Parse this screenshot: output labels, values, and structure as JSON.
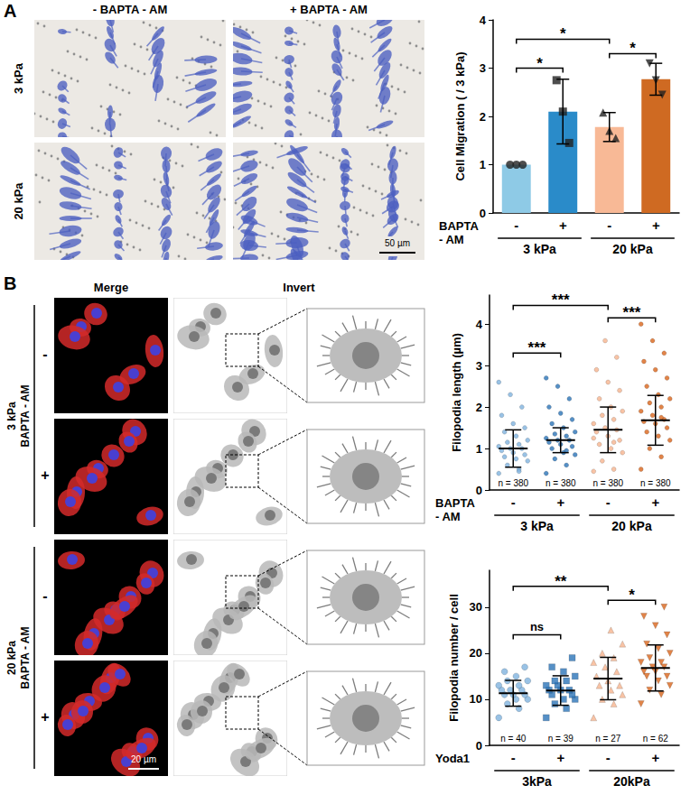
{
  "images": {
    "A": {
      "letter": "A",
      "columns": [
        "- BAPTA - AM",
        "+ BAPTA - AM"
      ],
      "rows": [
        "3 kPa",
        "20 kPa"
      ],
      "scale_bar": "50 µm"
    },
    "B": {
      "letter": "B",
      "columns": [
        "Merge",
        "Invert"
      ],
      "groups": [
        {
          "label": [
            "3 kPa",
            "BAPTA - AM"
          ],
          "rows": [
            "-",
            "+"
          ]
        },
        {
          "label": [
            "20 kPa",
            "BAPTA - AM"
          ],
          "rows": [
            "-",
            "+"
          ]
        }
      ],
      "scale_bar": "20 µm"
    }
  },
  "chart_data": [
    {
      "type": "bar",
      "y_label": "Cell Migration ( / 3 kPa)",
      "categories": [
        "-",
        "+",
        "-",
        "+"
      ],
      "category_title": "BAPTA - AM",
      "groups": [
        "3 kPa",
        "20 kPa"
      ],
      "values": [
        1.0,
        2.1,
        1.78,
        2.77
      ],
      "errors": [
        0,
        0.67,
        0.3,
        0.33
      ],
      "points": [
        [
          1,
          1,
          1
        ],
        [
          2.75,
          2.1,
          1.45
        ],
        [
          2.08,
          1.7,
          1.55
        ],
        [
          3.1,
          2.75,
          2.45
        ]
      ],
      "colors": [
        "#8ecae6",
        "#2a8bc9",
        "#f8b996",
        "#cf6a22"
      ],
      "markers": [
        "circle",
        "square",
        "triangle",
        "triangle-down"
      ],
      "ylim": [
        0,
        4
      ],
      "yticks": [
        0,
        1,
        2,
        3,
        4
      ],
      "grid": false,
      "significance": [
        {
          "between": [
            0,
            1
          ],
          "y": 3.0,
          "label": "*"
        },
        {
          "between": [
            0,
            2
          ],
          "y": 3.6,
          "label": "*"
        },
        {
          "between": [
            2,
            3
          ],
          "y": 3.3,
          "label": "*"
        }
      ]
    },
    {
      "type": "scatter",
      "y_label": "Filopodia length (µm)",
      "categories": [
        "-",
        "+",
        "-",
        "+"
      ],
      "category_title": "BAPTA - AM",
      "groups": [
        "3 kPa",
        "20 kPa"
      ],
      "n_labels": [
        "n = 380",
        "n = 380",
        "n = 380",
        "n = 380"
      ],
      "values": [
        1.0,
        1.2,
        1.45,
        1.68
      ],
      "errors": [
        0.45,
        0.3,
        0.55,
        0.6
      ],
      "points": [
        [
          0.4,
          0.5,
          0.6,
          0.7,
          0.75,
          0.8,
          0.85,
          0.9,
          0.95,
          1.0,
          1.0,
          1.05,
          1.1,
          1.15,
          1.2,
          1.3,
          1.4,
          1.5,
          1.6,
          1.8,
          2.0,
          2.3,
          2.6,
          0.45
        ],
        [
          0.4,
          0.6,
          0.75,
          0.85,
          0.9,
          1.0,
          1.05,
          1.1,
          1.15,
          1.2,
          1.2,
          1.25,
          1.3,
          1.35,
          1.4,
          1.5,
          1.6,
          1.7,
          1.85,
          2.0,
          2.2,
          2.5,
          2.7,
          0.95
        ],
        [
          0.45,
          0.5,
          0.7,
          0.9,
          1.0,
          1.1,
          1.2,
          1.3,
          1.4,
          1.45,
          1.5,
          1.6,
          1.7,
          1.8,
          1.9,
          2.0,
          2.2,
          2.4,
          2.6,
          2.9,
          3.2,
          3.6,
          1.25,
          1.15
        ],
        [
          0.5,
          0.8,
          1.0,
          1.2,
          1.3,
          1.4,
          1.5,
          1.6,
          1.65,
          1.7,
          1.8,
          1.9,
          2.0,
          2.1,
          2.2,
          2.3,
          2.5,
          2.7,
          2.9,
          3.1,
          3.3,
          3.6,
          4.0,
          1.75
        ]
      ],
      "colors": [
        "#7fb3df",
        "#2c74b8",
        "#f6b48f",
        "#d9651c"
      ],
      "markers": [
        "circle",
        "circle",
        "circle",
        "circle"
      ],
      "ylim": [
        0,
        4.7
      ],
      "yticks": [
        0,
        1,
        2,
        3,
        4
      ],
      "grid": false,
      "significance": [
        {
          "between": [
            0,
            1
          ],
          "y": 3.3,
          "label": "***"
        },
        {
          "between": [
            0,
            2
          ],
          "y": 4.45,
          "label": "***"
        },
        {
          "between": [
            2,
            3
          ],
          "y": 4.15,
          "label": "***"
        }
      ]
    },
    {
      "type": "scatter",
      "y_label": "Filopodia number / cell",
      "categories": [
        "-",
        "+",
        "-",
        "+"
      ],
      "category_title": "Yoda1",
      "groups": [
        "3kPa",
        "20kPa"
      ],
      "n_labels": [
        "n = 40",
        "n = 39",
        "n = 27",
        "n = 62"
      ],
      "values": [
        11.3,
        11.9,
        14.5,
        16.8
      ],
      "errors": [
        2.8,
        3.2,
        4.6,
        5.0
      ],
      "points": [
        [
          6,
          8,
          9,
          10,
          10,
          11,
          11,
          11,
          12,
          12,
          12,
          13,
          13,
          14,
          14,
          15,
          16,
          17
        ],
        [
          6,
          8,
          9,
          10,
          10,
          11,
          11,
          12,
          12,
          12,
          13,
          13,
          14,
          14,
          15,
          16,
          17,
          19
        ],
        [
          6,
          9,
          10,
          11,
          12,
          13,
          13,
          14,
          15,
          16,
          17,
          18,
          19,
          20,
          22,
          25
        ],
        [
          9,
          11,
          12,
          13,
          14,
          15,
          15,
          16,
          16,
          17,
          17,
          18,
          18,
          19,
          20,
          21,
          22,
          24,
          26,
          28,
          30
        ]
      ],
      "colors": [
        "#7fb3df",
        "#2c74b8",
        "#f6b48f",
        "#d9651c"
      ],
      "markers": [
        "circle",
        "square",
        "triangle",
        "triangle-down"
      ],
      "ylim": [
        0,
        38
      ],
      "yticks": [
        0,
        10,
        20,
        30
      ],
      "grid": false,
      "significance": [
        {
          "between": [
            0,
            1
          ],
          "y": 24,
          "label": "ns"
        },
        {
          "between": [
            0,
            2
          ],
          "y": 34.5,
          "label": "**"
        },
        {
          "between": [
            2,
            3
          ],
          "y": 31.5,
          "label": "*"
        }
      ]
    }
  ]
}
